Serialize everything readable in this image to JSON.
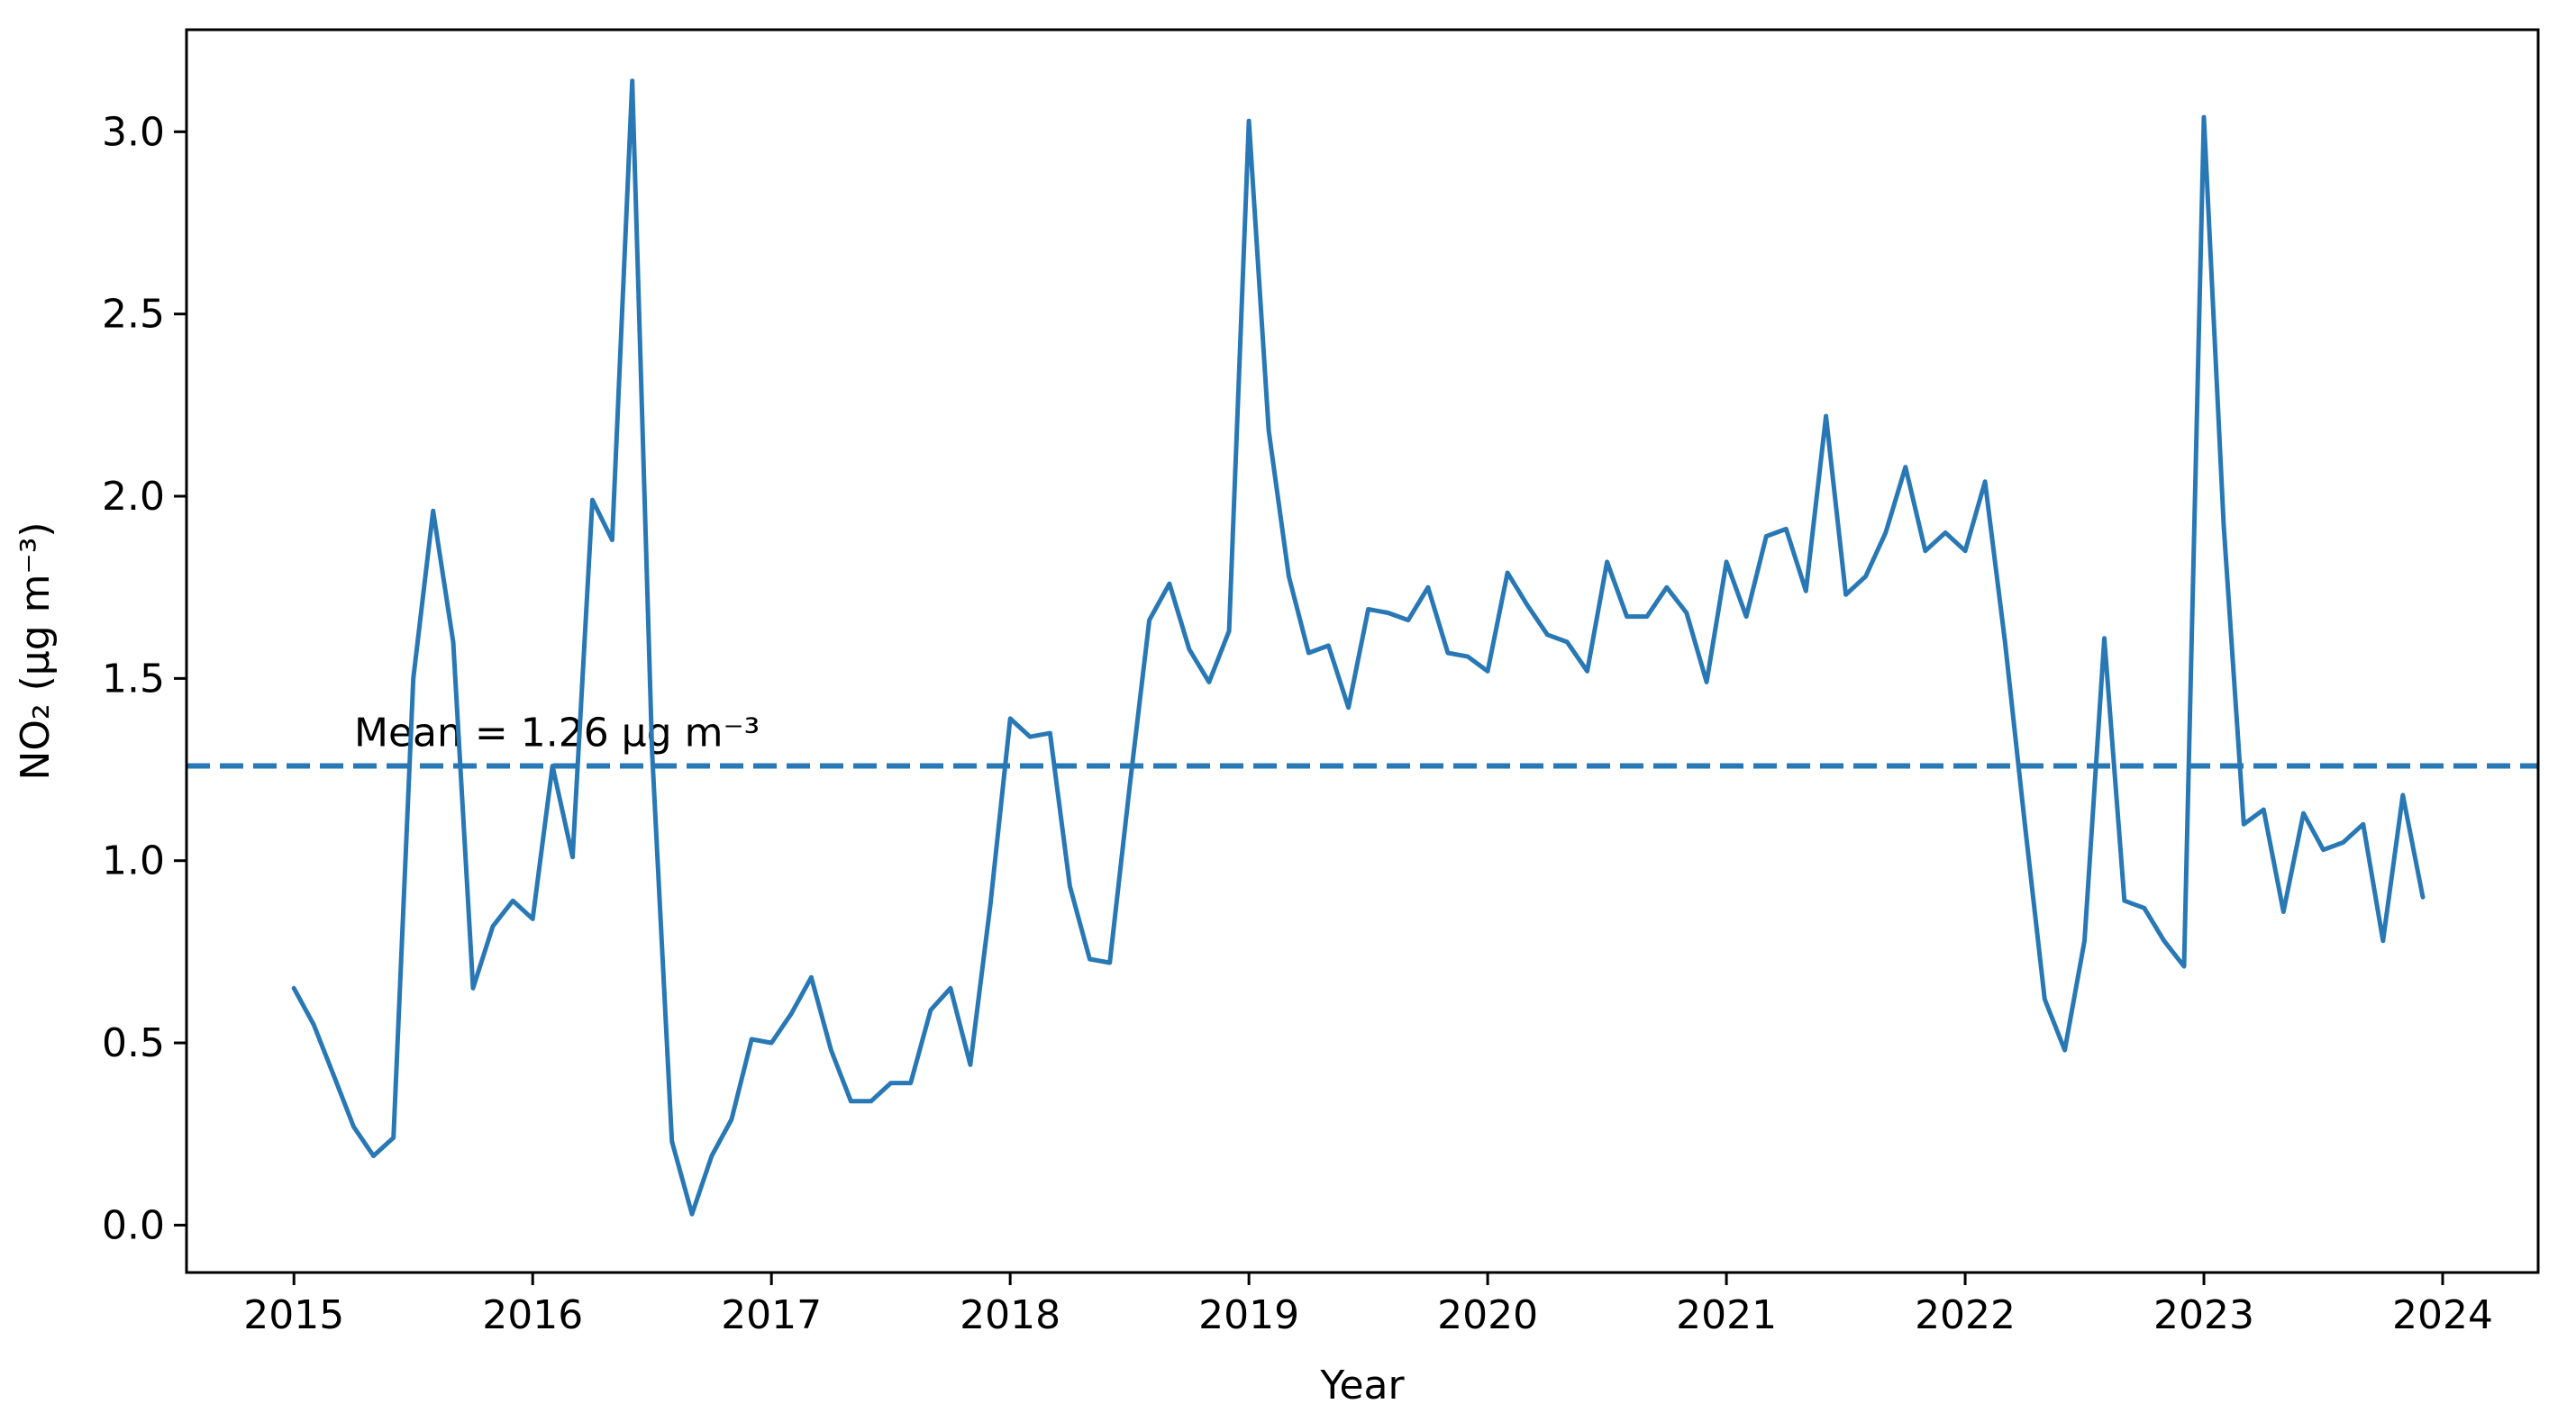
{
  "chart_data": {
    "type": "line",
    "xlabel": "Year",
    "ylabel": "NO₂ (µg m⁻³)",
    "xlim": [
      2014.55,
      2024.4
    ],
    "ylim": [
      -0.13,
      3.28
    ],
    "x_ticks": [
      2015,
      2016,
      2017,
      2018,
      2019,
      2020,
      2021,
      2022,
      2023,
      2024
    ],
    "x_tick_labels": [
      "2015",
      "2016",
      "2017",
      "2018",
      "2019",
      "2020",
      "2021",
      "2022",
      "2023",
      "2024"
    ],
    "y_ticks": [
      0.0,
      0.5,
      1.0,
      1.5,
      2.0,
      2.5,
      3.0
    ],
    "y_tick_labels": [
      "0.0",
      "0.5",
      "1.0",
      "1.5",
      "2.0",
      "2.5",
      "3.0"
    ],
    "grid": false,
    "colors": {
      "line": "#2878b5",
      "mean_line": "#2878b5",
      "axes": "#000000"
    },
    "mean": {
      "value": 1.26,
      "label": "Mean = 1.26 µg m⁻³",
      "style": "dashed"
    },
    "series": [
      {
        "x": [
          2015.0,
          2015.083,
          2015.167,
          2015.25,
          2015.333,
          2015.417,
          2015.5,
          2015.583,
          2015.667,
          2015.75,
          2015.833,
          2015.917,
          2016.0,
          2016.083,
          2016.167,
          2016.25,
          2016.333,
          2016.417,
          2016.5,
          2016.583,
          2016.667,
          2016.75,
          2016.833,
          2016.917,
          2017.0,
          2017.083,
          2017.167,
          2017.25,
          2017.333,
          2017.417,
          2017.5,
          2017.583,
          2017.667,
          2017.75,
          2017.833,
          2017.917,
          2018.0,
          2018.083,
          2018.167,
          2018.25,
          2018.333,
          2018.417,
          2018.5,
          2018.583,
          2018.667,
          2018.75,
          2018.833,
          2018.917,
          2019.0,
          2019.083,
          2019.167,
          2019.25,
          2019.333,
          2019.417,
          2019.5,
          2019.583,
          2019.667,
          2019.75,
          2019.833,
          2019.917,
          2020.0,
          2020.083,
          2020.167,
          2020.25,
          2020.333,
          2020.417,
          2020.5,
          2020.583,
          2020.667,
          2020.75,
          2020.833,
          2020.917,
          2021.0,
          2021.083,
          2021.167,
          2021.25,
          2021.333,
          2021.417,
          2021.5,
          2021.583,
          2021.667,
          2021.75,
          2021.833,
          2021.917,
          2022.0,
          2022.083,
          2022.167,
          2022.25,
          2022.333,
          2022.417,
          2022.5,
          2022.583,
          2022.667,
          2022.75,
          2022.833,
          2022.917,
          2023.0,
          2023.083,
          2023.167,
          2023.25,
          2023.333,
          2023.417,
          2023.5,
          2023.583,
          2023.667,
          2023.75,
          2023.833,
          2023.917
        ],
        "y": [
          0.65,
          0.55,
          0.41,
          0.27,
          0.19,
          0.24,
          1.5,
          1.96,
          1.6,
          0.65,
          0.82,
          0.89,
          0.84,
          1.26,
          1.01,
          1.99,
          1.88,
          3.14,
          1.3,
          0.23,
          0.03,
          0.19,
          0.29,
          0.51,
          0.5,
          0.58,
          0.68,
          0.48,
          0.34,
          0.34,
          0.39,
          0.39,
          0.59,
          0.65,
          0.44,
          0.88,
          1.39,
          1.34,
          1.35,
          0.93,
          0.73,
          0.72,
          1.2,
          1.66,
          1.76,
          1.58,
          1.49,
          1.63,
          3.03,
          2.18,
          1.78,
          1.57,
          1.59,
          1.42,
          1.69,
          1.68,
          1.66,
          1.75,
          1.57,
          1.56,
          1.52,
          1.79,
          1.7,
          1.62,
          1.6,
          1.52,
          1.82,
          1.67,
          1.67,
          1.75,
          1.68,
          1.49,
          1.82,
          1.67,
          1.89,
          1.91,
          1.74,
          2.22,
          1.73,
          1.78,
          1.9,
          2.08,
          1.85,
          1.9,
          1.85,
          2.04,
          1.6,
          1.1,
          0.62,
          0.48,
          0.78,
          1.61,
          0.89,
          0.87,
          0.78,
          0.71,
          3.04,
          1.92,
          1.1,
          1.14,
          0.86,
          1.13,
          1.03,
          1.05,
          1.1,
          0.78,
          1.18,
          0.9
        ]
      }
    ]
  }
}
